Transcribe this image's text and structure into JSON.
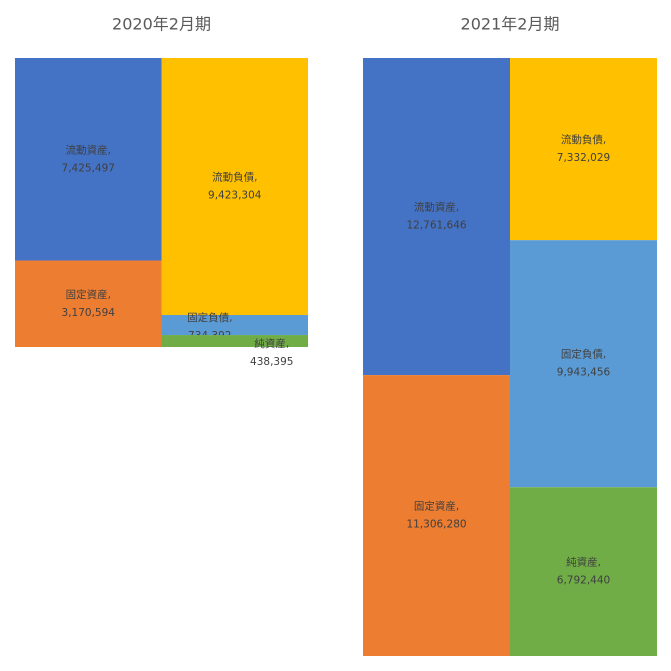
{
  "chart_data": [
    {
      "type": "stacked-bar",
      "title": "2020年2月期",
      "categories": [
        null,
        null
      ],
      "series": [
        {
          "name": "流動資産,",
          "color": "#4472c4",
          "values": [
            7425497,
            null
          ],
          "value_labels": [
            "7,425,497",
            null
          ]
        },
        {
          "name": "固定資産,",
          "color": "#ed7d31",
          "values": [
            3170594,
            null
          ],
          "value_labels": [
            "3,170,594",
            null
          ]
        },
        {
          "name": "流動負債,",
          "color": "#ffc000",
          "values": [
            null,
            9423304
          ],
          "value_labels": [
            null,
            "9,423,304"
          ]
        },
        {
          "name": "固定負債,",
          "color": "#5b9bd5",
          "values": [
            null,
            734392
          ],
          "value_labels": [
            null,
            "734,392"
          ]
        },
        {
          "name": "純資産,",
          "color": "#70ad47",
          "values": [
            null,
            438395
          ],
          "value_labels": [
            null,
            "438,395"
          ]
        }
      ]
    },
    {
      "type": "stacked-bar",
      "title": "2021年2月期",
      "categories": [
        null,
        null
      ],
      "series": [
        {
          "name": "流動資産,",
          "color": "#4472c4",
          "values": [
            12761646,
            null
          ],
          "value_labels": [
            "12,761,646",
            null
          ]
        },
        {
          "name": "固定資産,",
          "color": "#ed7d31",
          "values": [
            11306280,
            null
          ],
          "value_labels": [
            "11,306,280",
            null
          ]
        },
        {
          "name": "流動負債,",
          "color": "#ffc000",
          "values": [
            null,
            7332029
          ],
          "value_labels": [
            null,
            "7,332,029"
          ]
        },
        {
          "name": "固定負債,",
          "color": "#5b9bd5",
          "values": [
            null,
            9943456
          ],
          "value_labels": [
            null,
            "9,943,456"
          ]
        },
        {
          "name": "純資産,",
          "color": "#70ad47",
          "values": [
            null,
            6792440
          ],
          "value_labels": [
            null,
            "6,792,440"
          ]
        }
      ]
    }
  ]
}
